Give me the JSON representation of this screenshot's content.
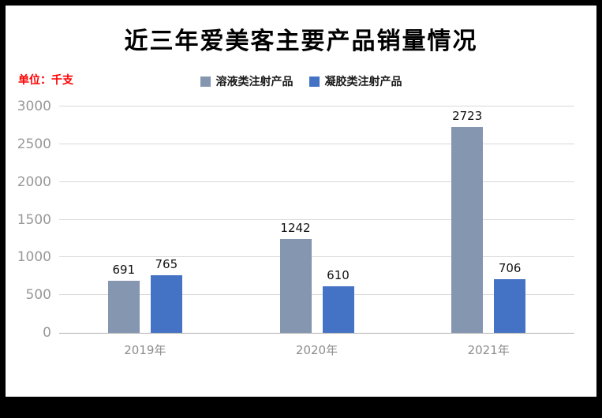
{
  "frame": {
    "background": "#000000",
    "panel_background": "#ffffff"
  },
  "title": "近三年爱美客主要产品销量情况",
  "unit_label": "单位：千支",
  "colors": {
    "title_text": "#000000",
    "unit_text": "#ff0000",
    "axis_tick_text": "#989898",
    "gridline": "#d9d9d9",
    "value_label_text": "#111111"
  },
  "chart_data": {
    "type": "bar",
    "title": "近三年爱美客主要产品销量情况",
    "categories": [
      "2019年",
      "2020年",
      "2021年"
    ],
    "series": [
      {
        "name": "溶液类注射产品",
        "color": "#8496b0",
        "values": [
          691,
          1242,
          2723
        ]
      },
      {
        "name": "凝胶类注射产品",
        "color": "#4472c4",
        "values": [
          765,
          610,
          706
        ]
      }
    ],
    "xlabel": "",
    "ylabel": "",
    "ylim": [
      0,
      3000
    ],
    "yticks": [
      0,
      500,
      1000,
      1500,
      2000,
      2500,
      3000
    ],
    "grid": true,
    "legend_position": "top",
    "data_labels": true
  }
}
